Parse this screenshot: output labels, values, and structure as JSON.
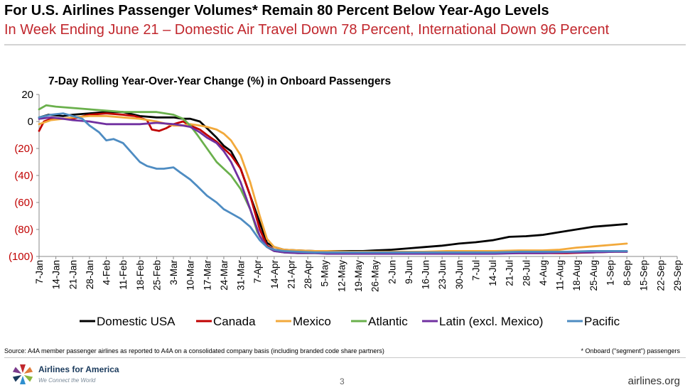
{
  "header": {
    "title": "For U.S. Airlines Passenger Volumes* Remain 80 Percent Below Year-Ago Levels",
    "subtitle": "In Week Ending June 21 – Domestic Air Travel Down 78 Percent, International Down 96 Percent"
  },
  "chart_data": {
    "type": "line",
    "title": "7-Day Rolling Year-Over-Year Change (%) in Onboard Passengers",
    "ylim": [
      -100,
      20
    ],
    "yticks": [
      20,
      0,
      -20,
      -40,
      -60,
      -80,
      -100
    ],
    "ytick_labels": [
      "20",
      "0",
      "(20)",
      "(40)",
      "(60)",
      "(80)",
      "(100)"
    ],
    "ytick_colors": [
      "#000000",
      "#000000",
      "#c00000",
      "#c00000",
      "#c00000",
      "#c00000",
      "#c00000"
    ],
    "xlim": [
      0,
      266
    ],
    "categories": [
      "7-Jan",
      "14-Jan",
      "21-Jan",
      "28-Jan",
      "4-Feb",
      "11-Feb",
      "18-Feb",
      "25-Feb",
      "3-Mar",
      "10-Mar",
      "17-Mar",
      "24-Mar",
      "31-Mar",
      "7-Apr",
      "14-Apr",
      "21-Apr",
      "28-Apr",
      "5-May",
      "12-May",
      "19-May",
      "26-May",
      "2-Jun",
      "9-Jun",
      "16-Jun",
      "23-Jun",
      "30-Jun",
      "7-Jul",
      "14-Jul",
      "21-Jul",
      "28-Jul",
      "4-Aug",
      "11-Aug",
      "18-Aug",
      "25-Aug",
      "1-Sep",
      "8-Sep",
      "15-Sep",
      "22-Sep",
      "29-Sep"
    ],
    "legend_position": "bottom",
    "series": [
      {
        "name": "Domestic USA",
        "color": "#000000",
        "x": [
          0,
          4,
          10,
          14,
          21,
          28,
          35,
          42,
          49,
          52,
          56,
          60,
          63,
          67,
          70,
          74,
          77,
          80,
          84,
          88,
          92,
          95,
          98,
          102,
          108,
          115,
          120,
          125,
          130,
          135,
          140,
          147,
          154,
          161,
          168,
          175,
          182,
          189,
          196,
          203,
          210,
          217,
          224,
          231,
          238,
          245
        ],
        "y": [
          3,
          5,
          4,
          5,
          6,
          7,
          7,
          4,
          3,
          3,
          3,
          2,
          2,
          0,
          -5,
          -12,
          -18,
          -22,
          -35,
          -55,
          -75,
          -90,
          -93,
          -95,
          -95.5,
          -96,
          -96,
          -96,
          -96,
          -96,
          -95.5,
          -95,
          -94,
          -93,
          -92,
          -90.5,
          -89.5,
          -88,
          -85.5,
          -85,
          -84,
          -82,
          -80,
          -78,
          -77,
          -76
        ]
      },
      {
        "name": "Canada",
        "color": "#c00000",
        "x": [
          0,
          2,
          5,
          10,
          14,
          21,
          28,
          35,
          40,
          45,
          47,
          50,
          53,
          56,
          60,
          63,
          67,
          70,
          74,
          77,
          80,
          84,
          88,
          92,
          95,
          98,
          102,
          108,
          115,
          120,
          130,
          140,
          150,
          160,
          170,
          180,
          190,
          200,
          210,
          220,
          230,
          240,
          245
        ],
        "y": [
          -7,
          0,
          2,
          2,
          2,
          5,
          6,
          5,
          4,
          1,
          -6,
          -7,
          -5,
          -2,
          0,
          -3,
          -6,
          -10,
          -15,
          -20,
          -25,
          -35,
          -55,
          -80,
          -92,
          -95,
          -96,
          -97,
          -97,
          -97,
          -97.5,
          -97.5,
          -97.5,
          -97.5,
          -97.5,
          -97.5,
          -97.5,
          -97.5,
          -97.5,
          -97.5,
          -97,
          -96.5,
          -96.5
        ]
      },
      {
        "name": "Mexico",
        "color": "#f2a93b",
        "x": [
          0,
          5,
          10,
          14,
          21,
          28,
          35,
          42,
          49,
          56,
          60,
          63,
          67,
          70,
          74,
          77,
          80,
          84,
          88,
          92,
          95,
          98,
          102,
          108,
          115,
          120,
          130,
          140,
          150,
          160,
          170,
          180,
          190,
          200,
          210,
          217,
          224,
          231,
          238,
          245
        ],
        "y": [
          -2,
          1,
          2,
          3,
          4,
          4,
          3,
          2,
          0,
          -3,
          -3,
          -2,
          -3,
          -4,
          -6,
          -9,
          -14,
          -25,
          -45,
          -70,
          -87,
          -93,
          -95,
          -95.5,
          -96,
          -96,
          -96.5,
          -96.5,
          -96.5,
          -96.5,
          -96,
          -96,
          -96,
          -95.5,
          -95.5,
          -95,
          -93.5,
          -92.5,
          -91.5,
          -90.5
        ]
      },
      {
        "name": "Atlantic",
        "color": "#6ab04c",
        "x": [
          0,
          3,
          7,
          14,
          21,
          28,
          35,
          42,
          49,
          56,
          60,
          63,
          66,
          70,
          74,
          77,
          80,
          84,
          88,
          91,
          95,
          98,
          102,
          108,
          115,
          120,
          130,
          140,
          150,
          160,
          170,
          180,
          190,
          200,
          210,
          220,
          230,
          240,
          245
        ],
        "y": [
          9,
          12,
          11,
          10,
          9,
          8,
          7,
          7,
          7,
          5,
          2,
          -3,
          -10,
          -20,
          -30,
          -35,
          -40,
          -50,
          -65,
          -82,
          -93,
          -96,
          -97,
          -97.5,
          -97.5,
          -97.5,
          -97.5,
          -97.5,
          -97.5,
          -97.5,
          -97.5,
          -97.5,
          -97.5,
          -97,
          -97,
          -96.5,
          -96.5,
          -96,
          -96
        ]
      },
      {
        "name": "Latin (excl. Mexico)",
        "color": "#7030a0",
        "x": [
          0,
          5,
          10,
          14,
          21,
          28,
          35,
          42,
          49,
          56,
          60,
          63,
          67,
          70,
          74,
          77,
          80,
          84,
          88,
          92,
          95,
          98,
          102,
          108,
          115,
          120,
          130,
          140,
          150,
          160,
          170,
          180,
          190,
          200,
          210,
          220,
          230,
          240,
          245
        ],
        "y": [
          2,
          3,
          2,
          1,
          0,
          -2,
          -2,
          -2,
          -1,
          -2,
          -3,
          -4,
          -8,
          -12,
          -16,
          -22,
          -30,
          -45,
          -65,
          -85,
          -93,
          -96,
          -97,
          -97.5,
          -97.5,
          -98,
          -98,
          -98,
          -98,
          -98,
          -98,
          -98,
          -98,
          -97.5,
          -97.5,
          -97,
          -97,
          -96.5,
          -96.5
        ]
      },
      {
        "name": "Pacific",
        "color": "#4e8cc2",
        "x": [
          0,
          5,
          10,
          14,
          18,
          21,
          25,
          28,
          31,
          35,
          38,
          42,
          45,
          49,
          52,
          56,
          59,
          63,
          66,
          70,
          74,
          77,
          80,
          84,
          88,
          92,
          95,
          98,
          102,
          108,
          115,
          120,
          130,
          140,
          150,
          160,
          170,
          180,
          190,
          200,
          210,
          220,
          230,
          240,
          245
        ],
        "y": [
          3,
          5,
          6,
          4,
          2,
          -3,
          -8,
          -14,
          -13,
          -16,
          -22,
          -30,
          -33,
          -35,
          -35,
          -34,
          -38,
          -43,
          -48,
          -55,
          -60,
          -65,
          -68,
          -72,
          -78,
          -88,
          -93,
          -95,
          -96,
          -96.5,
          -97,
          -97,
          -97,
          -97,
          -97,
          -97,
          -97,
          -97,
          -97,
          -96.5,
          -96.5,
          -96.5,
          -96,
          -96,
          -96
        ]
      }
    ]
  },
  "footer": {
    "source": "Source: A4A member passenger airlines as reported to A4A on a consolidated company basis (including branded code share partners)",
    "note": "* Onboard (\"segment\") passengers",
    "brand": "Airlines for America",
    "tagline": "We Connect the World",
    "page": "3",
    "site": "airlines.org"
  }
}
